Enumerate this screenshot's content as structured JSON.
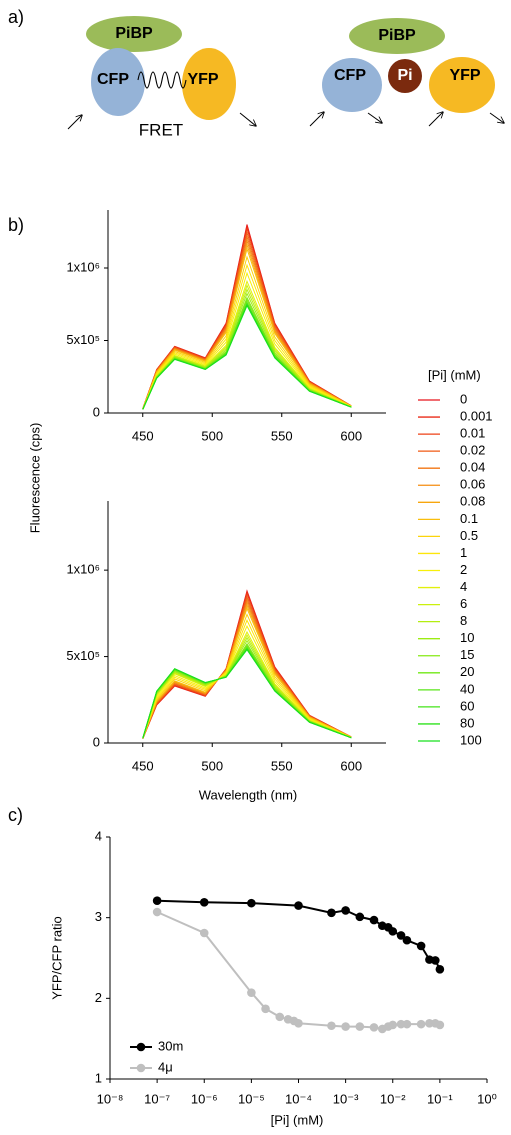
{
  "panel_labels": [
    "a)",
    "b)",
    "c)"
  ],
  "diagram": {
    "left": {
      "top": "PiBP",
      "left": "CFP",
      "right": "YFP",
      "caption": "FRET"
    },
    "right": {
      "top": "PiBP",
      "left": "CFP",
      "center": "Pi",
      "right": "YFP"
    }
  },
  "chart_data": [
    {
      "type": "line",
      "ylabel": "Fluorescence (cps)",
      "legend_title": "[Pi] (mM)",
      "legend": "right",
      "x": [
        450,
        460,
        473,
        495,
        510,
        525,
        545,
        570,
        600
      ],
      "xlim": [
        425,
        625
      ],
      "xticks": [
        450,
        500,
        550,
        600
      ],
      "ylim": [
        0,
        1400000
      ],
      "yticks": [
        0,
        {
          "value": 500000,
          "label": "5x10⁵"
        },
        {
          "value": 1000000,
          "label": "1x10⁶"
        }
      ],
      "series": [
        {
          "name": "0",
          "color": "#e8141c",
          "values": [
            30000,
            300000,
            460000,
            380000,
            620000,
            1300000,
            620000,
            220000,
            50000
          ]
        },
        {
          "name": "0.001",
          "color": "#ea2a18",
          "values": [
            30000,
            299000,
            458000,
            378000,
            616000,
            1289000,
            615000,
            219000,
            50000
          ]
        },
        {
          "name": "0.01",
          "color": "#ed4116",
          "values": [
            30000,
            297000,
            456000,
            376000,
            609000,
            1272000,
            608000,
            217000,
            50000
          ]
        },
        {
          "name": "0.02",
          "color": "#f05a14",
          "values": [
            29500,
            294000,
            451000,
            372000,
            598000,
            1244000,
            596000,
            213000,
            49000
          ]
        },
        {
          "name": "0.04",
          "color": "#f27412",
          "values": [
            29000,
            291000,
            447000,
            368000,
            587000,
            1216000,
            584000,
            210000,
            49000
          ]
        },
        {
          "name": "0.06",
          "color": "#f58d10",
          "values": [
            29000,
            288000,
            442000,
            364000,
            576000,
            1188000,
            572000,
            206000,
            48000
          ]
        },
        {
          "name": "0.08",
          "color": "#f7a60e",
          "values": [
            29000,
            285000,
            438000,
            360000,
            565000,
            1160000,
            560000,
            203000,
            48000
          ]
        },
        {
          "name": "0.1",
          "color": "#f9be0c",
          "values": [
            28500,
            282000,
            433000,
            356000,
            554000,
            1132000,
            548000,
            199000,
            47000
          ]
        },
        {
          "name": "0.5",
          "color": "#fbd40b",
          "values": [
            28000,
            276000,
            424000,
            348000,
            532000,
            1076000,
            524000,
            192000,
            46000
          ]
        },
        {
          "name": "1",
          "color": "#fde60a",
          "values": [
            27500,
            270000,
            415000,
            340000,
            510000,
            1020000,
            500000,
            185000,
            45000
          ]
        },
        {
          "name": "2",
          "color": "#f7f00a",
          "values": [
            27000,
            264000,
            406000,
            332000,
            488000,
            964000,
            476000,
            178000,
            44000
          ]
        },
        {
          "name": "4",
          "color": "#e2f00c",
          "values": [
            26500,
            258000,
            397000,
            324000,
            466000,
            908000,
            452000,
            171000,
            43000
          ]
        },
        {
          "name": "6",
          "color": "#cbf00e",
          "values": [
            26000,
            255000,
            393000,
            320000,
            455000,
            880000,
            440000,
            168000,
            43000
          ]
        },
        {
          "name": "8",
          "color": "#b4ee10",
          "values": [
            26000,
            252000,
            388000,
            316000,
            444000,
            852000,
            428000,
            164000,
            42000
          ]
        },
        {
          "name": "10",
          "color": "#9cec12",
          "values": [
            26000,
            249000,
            384000,
            312000,
            433000,
            824000,
            416000,
            161000,
            42000
          ]
        },
        {
          "name": "15",
          "color": "#86ea14",
          "values": [
            25500,
            246000,
            379000,
            308000,
            422000,
            796000,
            404000,
            157000,
            41000
          ]
        },
        {
          "name": "20",
          "color": "#70e816",
          "values": [
            25000,
            244000,
            376000,
            306000,
            415000,
            779000,
            397000,
            155000,
            41000
          ]
        },
        {
          "name": "40",
          "color": "#5ae618",
          "values": [
            25000,
            242000,
            374000,
            303000,
            409000,
            762000,
            390000,
            153000,
            40000
          ]
        },
        {
          "name": "60",
          "color": "#44e41a",
          "values": [
            25000,
            241000,
            372000,
            302000,
            404000,
            751000,
            385000,
            151000,
            40000
          ]
        },
        {
          "name": "80",
          "color": "#2ee21c",
          "values": [
            25000,
            241000,
            371000,
            301000,
            402000,
            746000,
            382000,
            151000,
            40000
          ]
        },
        {
          "name": "100",
          "color": "#18e01e",
          "values": [
            25000,
            240000,
            370000,
            300000,
            400000,
            740000,
            380000,
            150000,
            40000
          ]
        }
      ]
    },
    {
      "type": "line",
      "xlabel": "Wavelength (nm)",
      "x": [
        450,
        460,
        473,
        495,
        510,
        525,
        545,
        570,
        600
      ],
      "xlim": [
        425,
        625
      ],
      "xticks": [
        450,
        500,
        550,
        600
      ],
      "ylim": [
        0,
        1400000
      ],
      "yticks": [
        0,
        {
          "value": 500000,
          "label": "5x10⁵"
        },
        {
          "value": 1000000,
          "label": "1x10⁶"
        }
      ],
      "series": [
        {
          "values": [
            25000,
            220000,
            330000,
            270000,
            430000,
            880000,
            440000,
            160000,
            35000
          ]
        },
        {
          "values": [
            25000,
            222000,
            332000,
            272000,
            429000,
            873000,
            437000,
            159000,
            35000
          ]
        },
        {
          "values": [
            25000,
            224000,
            335000,
            274000,
            428000,
            863000,
            433000,
            158000,
            35000
          ]
        },
        {
          "values": [
            25300,
            228000,
            340000,
            278000,
            425000,
            846000,
            426000,
            156000,
            34500
          ]
        },
        {
          "values": [
            25000,
            232000,
            345000,
            282000,
            423000,
            829000,
            419000,
            154000,
            34000
          ]
        },
        {
          "values": [
            26000,
            236000,
            350000,
            286000,
            420000,
            812000,
            412000,
            152000,
            34000
          ]
        },
        {
          "values": [
            26000,
            240000,
            355000,
            290000,
            418000,
            795000,
            405000,
            150000,
            34000
          ]
        },
        {
          "values": [
            26000,
            244000,
            360000,
            294000,
            415000,
            778000,
            398000,
            148000,
            33500
          ]
        },
        {
          "values": [
            26200,
            252000,
            370000,
            302000,
            410000,
            744000,
            384000,
            144000,
            33000
          ]
        },
        {
          "values": [
            26500,
            260000,
            380000,
            310000,
            405000,
            710000,
            370000,
            140000,
            32500
          ]
        },
        {
          "values": [
            26800,
            268000,
            390000,
            318000,
            400000,
            676000,
            356000,
            136000,
            32000
          ]
        },
        {
          "values": [
            27100,
            276000,
            400000,
            326000,
            395000,
            642000,
            342000,
            132000,
            31500
          ]
        },
        {
          "values": [
            27000,
            280000,
            405000,
            330000,
            393000,
            625000,
            335000,
            130000,
            31000
          ]
        },
        {
          "values": [
            27400,
            284000,
            410000,
            334000,
            390000,
            608000,
            328000,
            128000,
            31000
          ]
        },
        {
          "values": [
            28000,
            288000,
            415000,
            338000,
            388000,
            591000,
            321000,
            126000,
            31000
          ]
        },
        {
          "values": [
            27700,
            292000,
            420000,
            342000,
            385000,
            574000,
            314000,
            124000,
            30500
          ]
        },
        {
          "values": [
            28000,
            294000,
            423000,
            344000,
            384000,
            564000,
            310000,
            123000,
            30000
          ]
        },
        {
          "values": [
            28000,
            297000,
            426000,
            347000,
            382000,
            554000,
            306000,
            122000,
            30000
          ]
        },
        {
          "values": [
            28000,
            298000,
            428000,
            348000,
            381000,
            547000,
            303000,
            121000,
            30000
          ]
        },
        {
          "values": [
            28000,
            299000,
            429000,
            349000,
            381000,
            543000,
            301000,
            120000,
            30000
          ]
        },
        {
          "values": [
            28000,
            300000,
            430000,
            350000,
            380000,
            540000,
            300000,
            120000,
            30000
          ]
        }
      ]
    },
    {
      "type": "line",
      "markers": true,
      "xscale": "log",
      "ylabel": "YFP/CFP ratio",
      "xlabel": "[Pi] (mM)",
      "legend": "lower left",
      "xlim": [
        1e-08,
        1
      ],
      "xticks": [
        {
          "value": 1e-08,
          "label": "10⁻⁸"
        },
        {
          "value": 1e-07,
          "label": "10⁻⁷"
        },
        {
          "value": 1e-06,
          "label": "10⁻⁶"
        },
        {
          "value": 1e-05,
          "label": "10⁻⁵"
        },
        {
          "value": 0.0001,
          "label": "10⁻⁴"
        },
        {
          "value": 0.001,
          "label": "10⁻³"
        },
        {
          "value": 0.01,
          "label": "10⁻²"
        },
        {
          "value": 0.1,
          "label": "10⁻¹"
        },
        {
          "value": 1,
          "label": "10⁰"
        }
      ],
      "ylim": [
        1,
        4
      ],
      "yticks": [
        1,
        2,
        3,
        4
      ],
      "series": [
        {
          "name": "30m",
          "color": "#000000",
          "x": [
            1e-07,
            1e-06,
            1e-05,
            0.0001,
            0.0005,
            0.001,
            0.002,
            0.004,
            0.006,
            0.008,
            0.01,
            0.015,
            0.02,
            0.04,
            0.06,
            0.08,
            0.1
          ],
          "values": [
            3.21,
            3.19,
            3.18,
            3.15,
            3.06,
            3.09,
            3.01,
            2.97,
            2.9,
            2.88,
            2.83,
            2.78,
            2.72,
            2.65,
            2.48,
            2.47,
            2.36
          ]
        },
        {
          "name": "4μ",
          "color": "#bfbfbf",
          "x": [
            1e-07,
            1e-06,
            1e-05,
            2e-05,
            4e-05,
            6e-05,
            8e-05,
            0.0001,
            0.0005,
            0.001,
            0.002,
            0.004,
            0.006,
            0.008,
            0.01,
            0.015,
            0.02,
            0.04,
            0.06,
            0.08,
            0.1
          ],
          "values": [
            3.07,
            2.81,
            2.07,
            1.87,
            1.77,
            1.74,
            1.72,
            1.69,
            1.66,
            1.65,
            1.65,
            1.64,
            1.62,
            1.65,
            1.67,
            1.68,
            1.68,
            1.68,
            1.69,
            1.69,
            1.67
          ]
        }
      ]
    }
  ]
}
